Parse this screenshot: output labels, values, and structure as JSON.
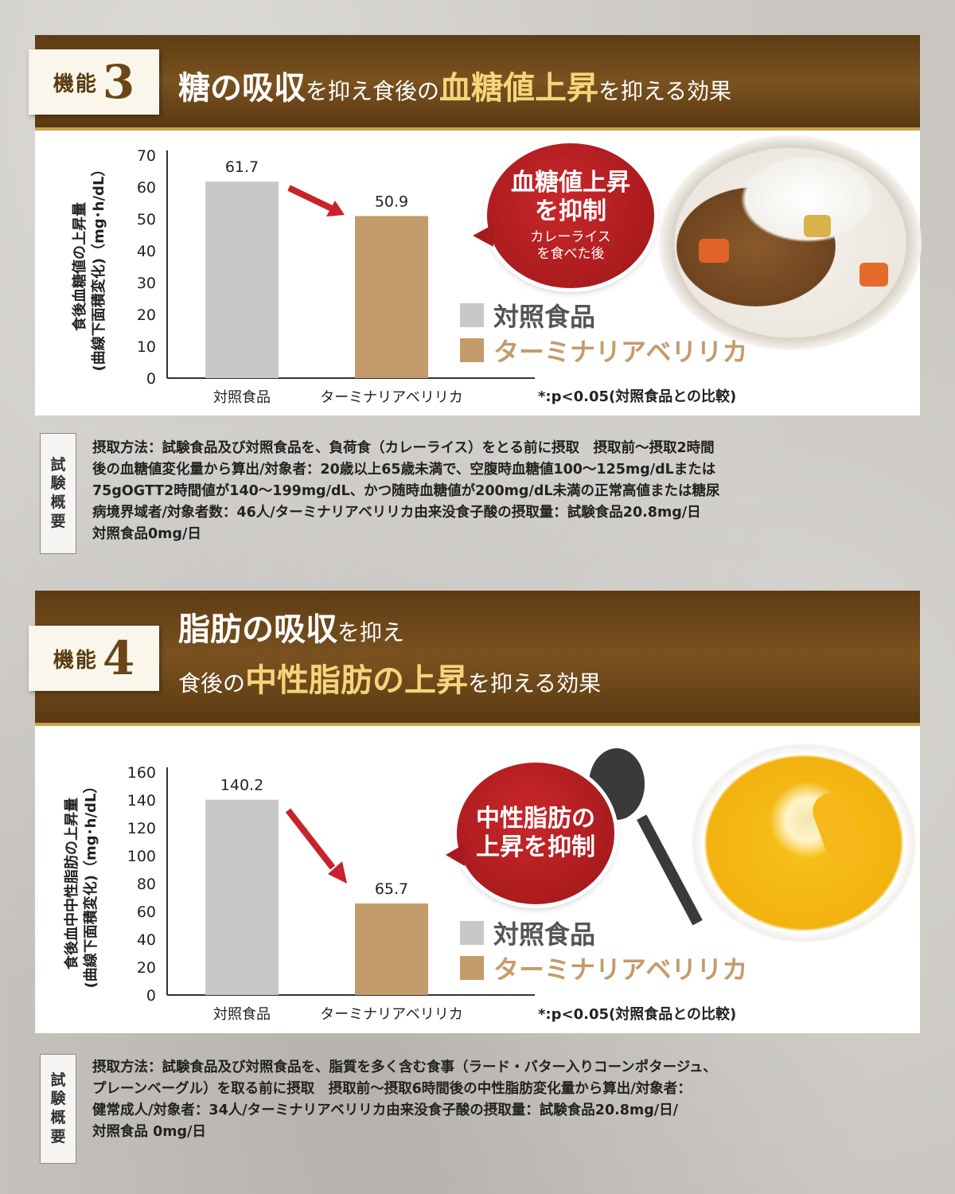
{
  "section1": {
    "badge": {
      "label": "機能",
      "number": "3"
    },
    "headline": {
      "part1": "糖の吸収",
      "part2": "を抑え食後の",
      "part3": "血糖値上昇",
      "part4": "を抑える効果"
    },
    "bubble": {
      "main_line1": "血糖値上昇",
      "main_line2": "を抑制",
      "sub_line1": "カレーライス",
      "sub_line2": "を食べた後"
    },
    "legend": [
      {
        "label": "対照食品",
        "color": "#c8c8c8",
        "text_color": "#555555"
      },
      {
        "label": "ターミナリアベリリカ",
        "color": "#c49b6b",
        "text_color": "#c49b6b"
      }
    ],
    "note": "*:p<0.05(対照食品との比較)",
    "summary_tag": [
      "試",
      "験",
      "概",
      "要"
    ],
    "summary_lines": [
      "摂取方法：試験食品及び対照食品を、負荷食（カレーライス）をとる前に摂取　摂取前〜摂取2時間",
      "後の血糖値変化量から算出/対象者：20歳以上65歳未満で、空腹時血糖値100〜125mg/dLまたは",
      "75gOGTT2時間値が140〜199mg/dL、かつ随時血糖値が200mg/dL未満の正常高値または糖尿",
      "病境界域者/対象者数：46人/ターミナリアベリリカ由来没食子酸の摂取量：試験食品20.8mg/日",
      "対照食品0mg/日"
    ],
    "food_icon": "curry-rice-image"
  },
  "section2": {
    "badge": {
      "label": "機能",
      "number": "4"
    },
    "headline": {
      "line1_part1": "脂肪の吸収",
      "line1_part2": "を抑え",
      "line2_part1": "食後の",
      "line2_part2": "中性脂肪の上昇",
      "line2_part3": "を抑える効果"
    },
    "bubble": {
      "main_line1": "中性脂肪の",
      "main_line2": "上昇を抑制"
    },
    "legend": [
      {
        "label": "対照食品",
        "color": "#c8c8c8",
        "text_color": "#555555"
      },
      {
        "label": "ターミナリアベリリカ",
        "color": "#c49b6b",
        "text_color": "#c49b6b"
      }
    ],
    "note": "*:p<0.05(対照食品との比較)",
    "summary_tag": [
      "試",
      "験",
      "概",
      "要"
    ],
    "summary_lines": [
      "摂取方法：試験食品及び対照食品を、脂質を多く含む食事（ラード・バター入りコーンポタージュ、",
      "プレーンベーグル）を取る前に摂取　摂取前〜摂取6時間後の中性脂肪変化量から算出/対象者：",
      "健常成人/対象者：34人/ターミナリアベリリカ由来没食子酸の摂取量：試験食品20.8mg/日/",
      "対照食品 0mg/日"
    ],
    "food_icon": "corn-soup-image"
  },
  "chart_data": [
    {
      "type": "bar",
      "categories": [
        "対照食品",
        "ターミナリアベリリカ"
      ],
      "values": [
        61.7,
        50.9
      ],
      "value_labels": [
        "61.7",
        "50.9"
      ],
      "colors": [
        "#c8c8c8",
        "#c49b6b"
      ],
      "ylabel_line1": "食後血糖値の上昇量",
      "ylabel_line2": "(曲線下面積変化)（mg･h/dL）",
      "ylim": [
        0,
        70
      ],
      "yticks": [
        0,
        10,
        20,
        30,
        40,
        50,
        60,
        70
      ],
      "grid": false
    },
    {
      "type": "bar",
      "categories": [
        "対照食品",
        "ターミナリアベリリカ"
      ],
      "values": [
        140.2,
        65.7
      ],
      "value_labels": [
        "140.2",
        "65.7"
      ],
      "colors": [
        "#c8c8c8",
        "#c49b6b"
      ],
      "ylabel_line1": "食後血中中性脂肪の上昇量",
      "ylabel_line2": "(曲線下面積変化)（mg･h/dL）",
      "ylim": [
        0,
        160
      ],
      "yticks": [
        0,
        20,
        40,
        60,
        80,
        100,
        120,
        140,
        160
      ],
      "grid": false
    }
  ]
}
